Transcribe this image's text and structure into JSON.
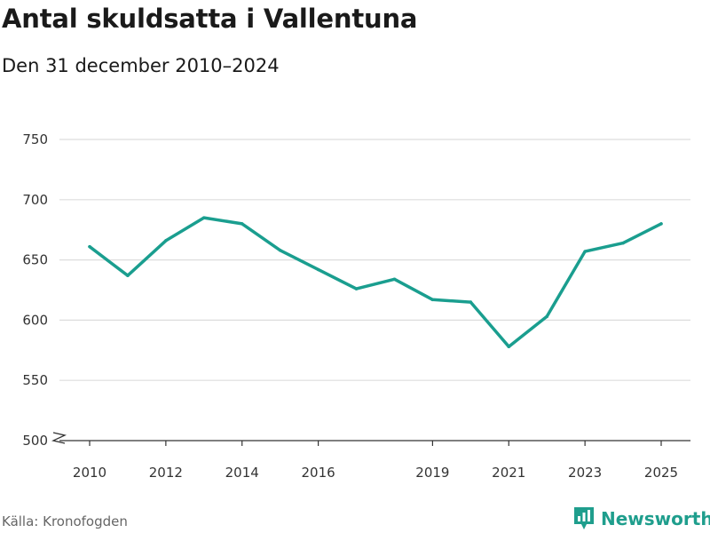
{
  "chart_data": {
    "type": "line",
    "title": "Antal skuldsatta i Vallentuna",
    "subtitle": "Den 31 december 2010–2024",
    "xlabel": "",
    "ylabel": "",
    "x": [
      2010,
      2011,
      2012,
      2013,
      2014,
      2015,
      2016,
      2017,
      2018,
      2019,
      2020,
      2021,
      2022,
      2023,
      2024,
      2025
    ],
    "series": [
      {
        "name": "Antal skuldsatta",
        "values": [
          661,
          637,
          666,
          685,
          680,
          658,
          642,
          626,
          634,
          617,
          615,
          578,
          603,
          657,
          664,
          680
        ]
      }
    ],
    "ylim": [
      500,
      750
    ],
    "yticks": [
      500,
      550,
      600,
      650,
      700,
      750
    ],
    "xticks": [
      2010,
      2012,
      2014,
      2016,
      2019,
      2021,
      2023,
      2025
    ],
    "grid": true,
    "y_axis_break": true,
    "line_color": "#1a9e8f"
  },
  "footer": {
    "source": "Källa: Kronofogden",
    "brand": "Newsworthy"
  },
  "colors": {
    "accent": "#1a9e8f",
    "brand": "#1f9e8d",
    "grid": "#dddddd"
  }
}
